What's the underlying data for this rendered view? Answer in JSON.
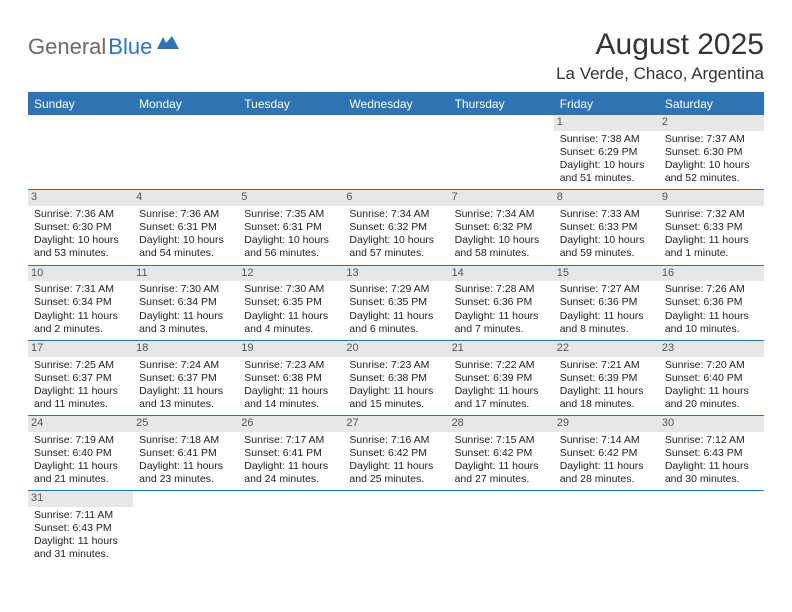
{
  "logo": {
    "word_a": "General",
    "word_b": "Blue"
  },
  "title": "August 2025",
  "location": "La Verde, Chaco, Argentina",
  "colors": {
    "brand_blue": "#2e74b5",
    "header_bg": "#2e74b5",
    "header_text": "#ffffff",
    "daynum_bg": "#e7e7e7",
    "daynum_text": "#555555",
    "body_text": "#222222",
    "logo_gray": "#6a6a6a"
  },
  "weekdays": [
    "Sunday",
    "Monday",
    "Tuesday",
    "Wednesday",
    "Thursday",
    "Friday",
    "Saturday"
  ],
  "weeks": [
    [
      {
        "n": "",
        "sr": "",
        "ss": "",
        "dl": ""
      },
      {
        "n": "",
        "sr": "",
        "ss": "",
        "dl": ""
      },
      {
        "n": "",
        "sr": "",
        "ss": "",
        "dl": ""
      },
      {
        "n": "",
        "sr": "",
        "ss": "",
        "dl": ""
      },
      {
        "n": "",
        "sr": "",
        "ss": "",
        "dl": ""
      },
      {
        "n": "1",
        "sr": "Sunrise: 7:38 AM",
        "ss": "Sunset: 6:29 PM",
        "dl": "Daylight: 10 hours and 51 minutes."
      },
      {
        "n": "2",
        "sr": "Sunrise: 7:37 AM",
        "ss": "Sunset: 6:30 PM",
        "dl": "Daylight: 10 hours and 52 minutes."
      }
    ],
    [
      {
        "n": "3",
        "sr": "Sunrise: 7:36 AM",
        "ss": "Sunset: 6:30 PM",
        "dl": "Daylight: 10 hours and 53 minutes."
      },
      {
        "n": "4",
        "sr": "Sunrise: 7:36 AM",
        "ss": "Sunset: 6:31 PM",
        "dl": "Daylight: 10 hours and 54 minutes."
      },
      {
        "n": "5",
        "sr": "Sunrise: 7:35 AM",
        "ss": "Sunset: 6:31 PM",
        "dl": "Daylight: 10 hours and 56 minutes."
      },
      {
        "n": "6",
        "sr": "Sunrise: 7:34 AM",
        "ss": "Sunset: 6:32 PM",
        "dl": "Daylight: 10 hours and 57 minutes."
      },
      {
        "n": "7",
        "sr": "Sunrise: 7:34 AM",
        "ss": "Sunset: 6:32 PM",
        "dl": "Daylight: 10 hours and 58 minutes."
      },
      {
        "n": "8",
        "sr": "Sunrise: 7:33 AM",
        "ss": "Sunset: 6:33 PM",
        "dl": "Daylight: 10 hours and 59 minutes."
      },
      {
        "n": "9",
        "sr": "Sunrise: 7:32 AM",
        "ss": "Sunset: 6:33 PM",
        "dl": "Daylight: 11 hours and 1 minute."
      }
    ],
    [
      {
        "n": "10",
        "sr": "Sunrise: 7:31 AM",
        "ss": "Sunset: 6:34 PM",
        "dl": "Daylight: 11 hours and 2 minutes."
      },
      {
        "n": "11",
        "sr": "Sunrise: 7:30 AM",
        "ss": "Sunset: 6:34 PM",
        "dl": "Daylight: 11 hours and 3 minutes."
      },
      {
        "n": "12",
        "sr": "Sunrise: 7:30 AM",
        "ss": "Sunset: 6:35 PM",
        "dl": "Daylight: 11 hours and 4 minutes."
      },
      {
        "n": "13",
        "sr": "Sunrise: 7:29 AM",
        "ss": "Sunset: 6:35 PM",
        "dl": "Daylight: 11 hours and 6 minutes."
      },
      {
        "n": "14",
        "sr": "Sunrise: 7:28 AM",
        "ss": "Sunset: 6:36 PM",
        "dl": "Daylight: 11 hours and 7 minutes."
      },
      {
        "n": "15",
        "sr": "Sunrise: 7:27 AM",
        "ss": "Sunset: 6:36 PM",
        "dl": "Daylight: 11 hours and 8 minutes."
      },
      {
        "n": "16",
        "sr": "Sunrise: 7:26 AM",
        "ss": "Sunset: 6:36 PM",
        "dl": "Daylight: 11 hours and 10 minutes."
      }
    ],
    [
      {
        "n": "17",
        "sr": "Sunrise: 7:25 AM",
        "ss": "Sunset: 6:37 PM",
        "dl": "Daylight: 11 hours and 11 minutes."
      },
      {
        "n": "18",
        "sr": "Sunrise: 7:24 AM",
        "ss": "Sunset: 6:37 PM",
        "dl": "Daylight: 11 hours and 13 minutes."
      },
      {
        "n": "19",
        "sr": "Sunrise: 7:23 AM",
        "ss": "Sunset: 6:38 PM",
        "dl": "Daylight: 11 hours and 14 minutes."
      },
      {
        "n": "20",
        "sr": "Sunrise: 7:23 AM",
        "ss": "Sunset: 6:38 PM",
        "dl": "Daylight: 11 hours and 15 minutes."
      },
      {
        "n": "21",
        "sr": "Sunrise: 7:22 AM",
        "ss": "Sunset: 6:39 PM",
        "dl": "Daylight: 11 hours and 17 minutes."
      },
      {
        "n": "22",
        "sr": "Sunrise: 7:21 AM",
        "ss": "Sunset: 6:39 PM",
        "dl": "Daylight: 11 hours and 18 minutes."
      },
      {
        "n": "23",
        "sr": "Sunrise: 7:20 AM",
        "ss": "Sunset: 6:40 PM",
        "dl": "Daylight: 11 hours and 20 minutes."
      }
    ],
    [
      {
        "n": "24",
        "sr": "Sunrise: 7:19 AM",
        "ss": "Sunset: 6:40 PM",
        "dl": "Daylight: 11 hours and 21 minutes."
      },
      {
        "n": "25",
        "sr": "Sunrise: 7:18 AM",
        "ss": "Sunset: 6:41 PM",
        "dl": "Daylight: 11 hours and 23 minutes."
      },
      {
        "n": "26",
        "sr": "Sunrise: 7:17 AM",
        "ss": "Sunset: 6:41 PM",
        "dl": "Daylight: 11 hours and 24 minutes."
      },
      {
        "n": "27",
        "sr": "Sunrise: 7:16 AM",
        "ss": "Sunset: 6:42 PM",
        "dl": "Daylight: 11 hours and 25 minutes."
      },
      {
        "n": "28",
        "sr": "Sunrise: 7:15 AM",
        "ss": "Sunset: 6:42 PM",
        "dl": "Daylight: 11 hours and 27 minutes."
      },
      {
        "n": "29",
        "sr": "Sunrise: 7:14 AM",
        "ss": "Sunset: 6:42 PM",
        "dl": "Daylight: 11 hours and 28 minutes."
      },
      {
        "n": "30",
        "sr": "Sunrise: 7:12 AM",
        "ss": "Sunset: 6:43 PM",
        "dl": "Daylight: 11 hours and 30 minutes."
      }
    ],
    [
      {
        "n": "31",
        "sr": "Sunrise: 7:11 AM",
        "ss": "Sunset: 6:43 PM",
        "dl": "Daylight: 11 hours and 31 minutes."
      },
      {
        "n": "",
        "sr": "",
        "ss": "",
        "dl": ""
      },
      {
        "n": "",
        "sr": "",
        "ss": "",
        "dl": ""
      },
      {
        "n": "",
        "sr": "",
        "ss": "",
        "dl": ""
      },
      {
        "n": "",
        "sr": "",
        "ss": "",
        "dl": ""
      },
      {
        "n": "",
        "sr": "",
        "ss": "",
        "dl": ""
      },
      {
        "n": "",
        "sr": "",
        "ss": "",
        "dl": ""
      }
    ]
  ]
}
